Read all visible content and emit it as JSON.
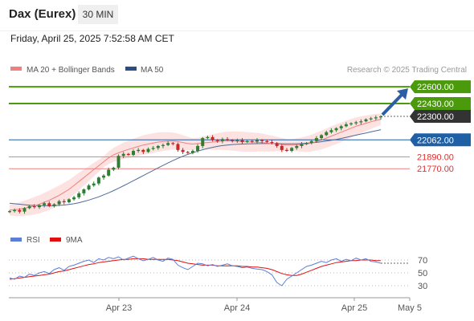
{
  "header": {
    "title": "Dax (Eurex)",
    "interval": "30 MIN",
    "datetime": "Friday, April 25, 2025 7:52:58 AM CET"
  },
  "legend": {
    "ma20_label": "MA 20 + Bollinger Bands",
    "ma50_label": "MA 50",
    "credit": "Research © 2025 Trading Central",
    "rsi_label": "RSI",
    "ma9_label": "9MA"
  },
  "colors": {
    "green_level": "#4a9a0c",
    "blue_level": "#1f5fa6",
    "red_level": "#f08080",
    "dark_label": "#333333",
    "ma20": "#f08080",
    "ma50": "#4f6b9a",
    "bollinger_fill": "#fde2e2",
    "candle_up": "#2e7d32",
    "candle_down": "#c62828",
    "rsi": "#5b7fd6",
    "ma9": "#e01010",
    "arrow": "#2c5ea8"
  },
  "chart_data": [
    {
      "type": "candlestick",
      "title": "Dax (Eurex) 30 MIN",
      "x_ticks": [
        "Apr 23",
        "Apr 24",
        "Apr 25",
        "May 5"
      ],
      "levels": [
        {
          "value": 22600.0,
          "label": "22600.00",
          "kind": "resistance-target",
          "color": "#4a9a0c"
        },
        {
          "value": 22430.0,
          "label": "22430.00",
          "kind": "resistance",
          "color": "#4a9a0c"
        },
        {
          "value": 22300.0,
          "label": "22300.00",
          "kind": "last-price",
          "color": "#333333"
        },
        {
          "value": 22062.0,
          "label": "22062.00",
          "kind": "pivot",
          "color": "#1f5fa6"
        },
        {
          "value": 21890.0,
          "label": "21890.00",
          "kind": "support",
          "color": "#f08080"
        },
        {
          "value": 21770.0,
          "label": "21770.00",
          "kind": "support",
          "color": "#f08080"
        }
      ],
      "ylim": [
        21300,
        22650
      ],
      "closes": [
        21340,
        21350,
        21335,
        21370,
        21390,
        21380,
        21400,
        21420,
        21390,
        21410,
        21440,
        21430,
        21460,
        21480,
        21520,
        21560,
        21600,
        21620,
        21680,
        21700,
        21760,
        21780,
        21900,
        21920,
        21910,
        21950,
        21960,
        21940,
        21970,
        21980,
        22000,
        22010,
        22030,
        22020,
        21960,
        21940,
        21930,
        21950,
        22000,
        22080,
        22090,
        22060,
        22050,
        22070,
        22060,
        22050,
        22060,
        22040,
        22050,
        22045,
        22060,
        22050,
        22040,
        22030,
        22000,
        21960,
        21950,
        21980,
        22000,
        22020,
        22030,
        22050,
        22080,
        22110,
        22140,
        22160,
        22180,
        22200,
        22220,
        22230,
        22240,
        22250,
        22270,
        22280,
        22290,
        22300
      ],
      "series": [
        {
          "name": "MA 20 + Bollinger Bands",
          "values": [
            21350,
            21355,
            21360,
            21370,
            21380,
            21395,
            21410,
            21430,
            21450,
            21475,
            21500,
            21530,
            21560,
            21600,
            21640,
            21680,
            21720,
            21760,
            21800,
            21840,
            21880,
            21910,
            21930,
            21950,
            21965,
            21980,
            21995,
            22010,
            22020,
            22030,
            22040,
            22045,
            22048,
            22050,
            22045,
            22035,
            22025,
            22020,
            22025,
            22030,
            22035,
            22040,
            22045,
            22050,
            22052,
            22050,
            22048,
            22045,
            22042,
            22040,
            22038,
            22035,
            22030,
            22025,
            22020,
            22015,
            22010,
            22010,
            22012,
            22015,
            22020,
            22030,
            22045,
            22060,
            22080,
            22100,
            22120,
            22140,
            22160,
            22180,
            22200,
            22215,
            22230,
            22245,
            22260,
            22270
          ]
        },
        {
          "name": "MA 50",
          "values": [
            21420,
            21415,
            21410,
            21405,
            21400,
            21398,
            21396,
            21395,
            21394,
            21395,
            21398,
            21402,
            21408,
            21415,
            21425,
            21438,
            21452,
            21468,
            21485,
            21505,
            21525,
            21548,
            21572,
            21597,
            21622,
            21648,
            21674,
            21700,
            21726,
            21752,
            21778,
            21803,
            21828,
            21852,
            21875,
            21896,
            21915,
            21932,
            21948,
            21962,
            21975,
            21986,
            21996,
            22004,
            22010,
            22015,
            22018,
            22020,
            22022,
            22023,
            22024,
            22025,
            22025,
            22025,
            22024,
            22023,
            22022,
            22022,
            22023,
            22025,
            22028,
            22032,
            22037,
            22043,
            22050,
            22058,
            22067,
            22077,
            22088,
            22099,
            22110,
            22121,
            22132,
            22143,
            22154,
            22165
          ]
        }
      ]
    },
    {
      "type": "line",
      "title": "RSI",
      "y_ticks": [
        70,
        50,
        30
      ],
      "ylim": [
        15,
        85
      ],
      "series": [
        {
          "name": "RSI",
          "values": [
            42,
            40,
            45,
            43,
            48,
            46,
            50,
            52,
            49,
            55,
            58,
            54,
            60,
            62,
            65,
            68,
            70,
            66,
            72,
            70,
            74,
            72,
            75,
            70,
            73,
            76,
            72,
            69,
            71,
            74,
            70,
            68,
            73,
            71,
            62,
            58,
            55,
            60,
            65,
            64,
            61,
            63,
            60,
            62,
            64,
            61,
            60,
            58,
            59,
            57,
            56,
            55,
            52,
            47,
            35,
            30,
            40,
            45,
            50,
            55,
            60,
            62,
            65,
            68,
            66,
            70,
            72,
            68,
            71,
            69,
            73,
            70,
            72,
            68,
            67,
            65
          ]
        },
        {
          "name": "9MA",
          "values": [
            40,
            41,
            42,
            43,
            44,
            45,
            46,
            47,
            48,
            50,
            52,
            53,
            55,
            57,
            59,
            61,
            63,
            64,
            66,
            67,
            68,
            69,
            70,
            71,
            71,
            72,
            72,
            72,
            71,
            71,
            71,
            71,
            71,
            70,
            69,
            67,
            65,
            64,
            63,
            62,
            62,
            62,
            61,
            61,
            61,
            61,
            61,
            60,
            60,
            59,
            59,
            58,
            57,
            55,
            52,
            49,
            47,
            46,
            46,
            48,
            51,
            54,
            57,
            60,
            62,
            64,
            66,
            67,
            68,
            69,
            69,
            70,
            70,
            70,
            69,
            69
          ]
        }
      ]
    }
  ]
}
